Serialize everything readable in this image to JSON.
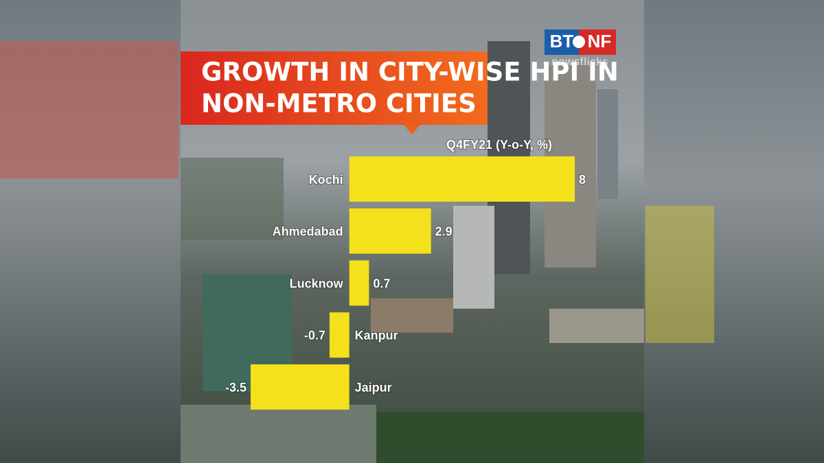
{
  "branding": {
    "logo": [
      "BT",
      "NF"
    ],
    "tagline": "newsflicks"
  },
  "chart_data": {
    "type": "hbar",
    "title": [
      "GROWTH IN CITY-WISE HPI IN",
      "NON-METRO CITIES"
    ],
    "subtitle": "Q4FY21 (Y-o-Y, %)",
    "categories": [
      "Kochi",
      "Ahmedabad",
      "Lucknow",
      "Kanpur",
      "Jaipur"
    ],
    "values": [
      8,
      2.9,
      0.7,
      -0.7,
      -3.5
    ],
    "color": "#f4e11c",
    "xlim": [
      -3.5,
      8
    ]
  }
}
